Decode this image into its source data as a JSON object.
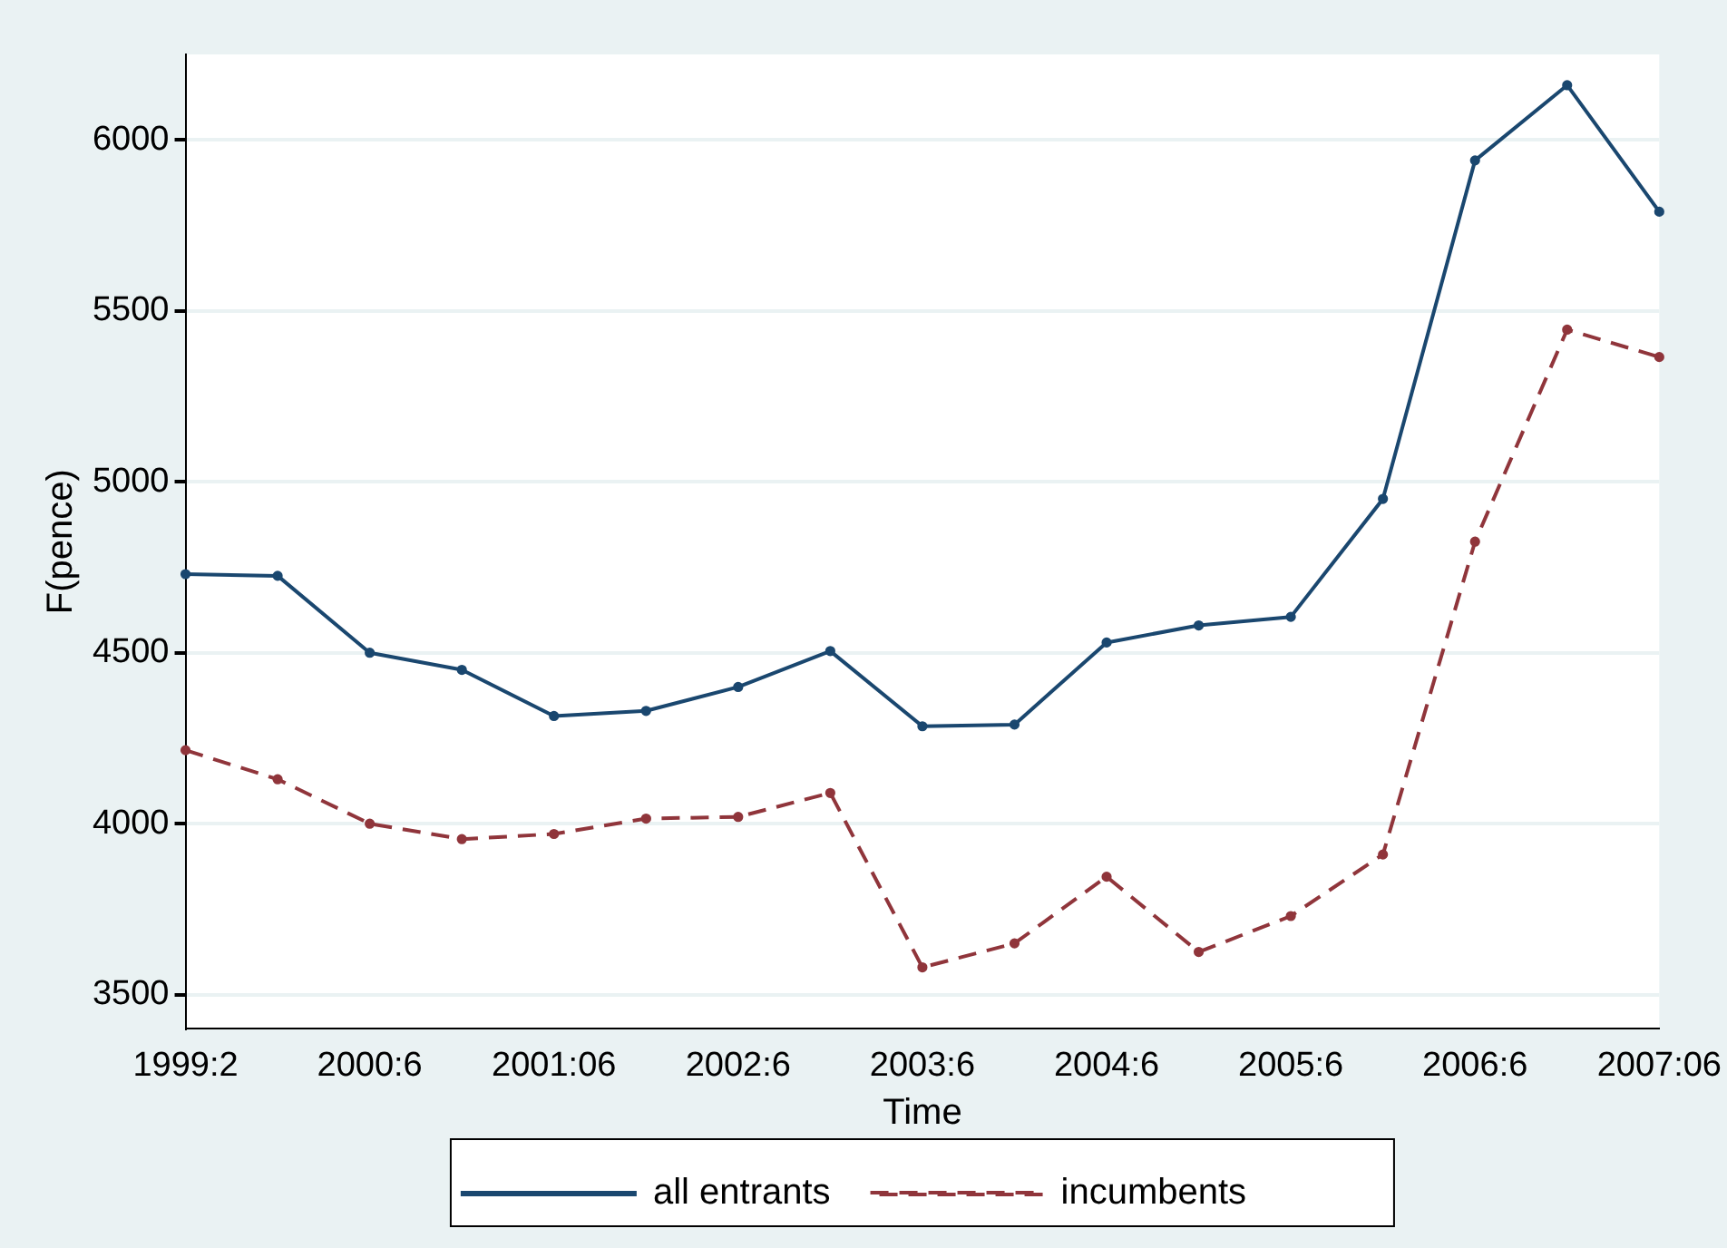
{
  "chart_data": {
    "type": "line",
    "xlabel": "Time",
    "ylabel": "F(pence)",
    "categories": [
      "1999:2",
      null,
      "2000:6",
      null,
      "2001:06",
      null,
      "2002:6",
      null,
      "2003:6",
      null,
      "2004:6",
      null,
      "2005:6",
      null,
      "2006:6",
      null,
      "2007:06"
    ],
    "series": [
      {
        "name": "all entrants",
        "color": "#1a476f",
        "line_style": "solid",
        "values": [
          4730,
          4725,
          4500,
          4450,
          4315,
          4330,
          4400,
          4505,
          4285,
          4290,
          4530,
          4580,
          4605,
          4950,
          5940,
          6160,
          5790
        ]
      },
      {
        "name": "incumbents",
        "color": "#90353b",
        "line_style": "dashed",
        "values": [
          4215,
          4130,
          4000,
          3955,
          3970,
          4015,
          4020,
          4090,
          3580,
          3650,
          3845,
          3625,
          3730,
          3910,
          4825,
          5445,
          5365
        ]
      }
    ],
    "ylim": [
      3400,
      6250
    ],
    "yticks": [
      3500,
      4000,
      4500,
      5000,
      5500,
      6000
    ],
    "grid": "y",
    "legend": "bottom",
    "marker": "circle"
  }
}
